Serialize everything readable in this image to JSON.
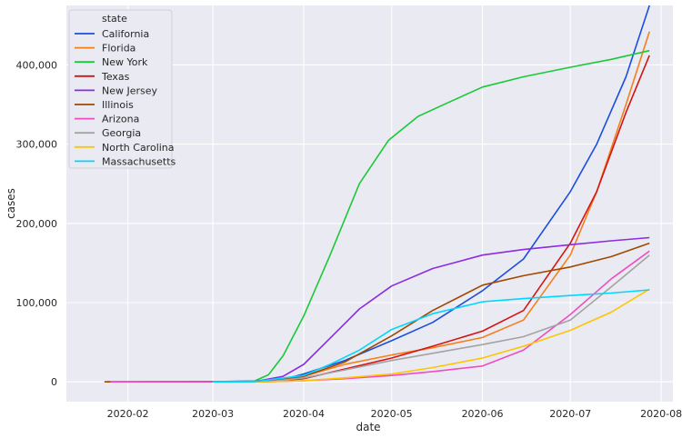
{
  "chart_data": {
    "type": "line",
    "xlabel": "date",
    "ylabel": "cases",
    "x_range": [
      "2020-01-11",
      "2020-08-05"
    ],
    "ylim": [
      -25000,
      475000
    ],
    "x_ticks": [
      {
        "date": "2020-02-01",
        "label": "2020-02"
      },
      {
        "date": "2020-03-01",
        "label": "2020-03"
      },
      {
        "date": "2020-04-01",
        "label": "2020-04"
      },
      {
        "date": "2020-05-01",
        "label": "2020-05"
      },
      {
        "date": "2020-06-01",
        "label": "2020-06"
      },
      {
        "date": "2020-07-01",
        "label": "2020-07"
      },
      {
        "date": "2020-08-01",
        "label": "2020-08"
      }
    ],
    "y_ticks": [
      {
        "value": 0,
        "label": "0"
      },
      {
        "value": 100000,
        "label": "100,000"
      },
      {
        "value": 200000,
        "label": "200,000"
      },
      {
        "value": 300000,
        "label": "300,000"
      },
      {
        "value": 400000,
        "label": "400,000"
      }
    ],
    "grid": true,
    "background": "#eaeaf2",
    "legend": {
      "title": "state",
      "placement": "top-left"
    },
    "series": [
      {
        "name": "California",
        "color": "#1a4ede",
        "points": [
          [
            "2020-01-25",
            0
          ],
          [
            "2020-03-01",
            200
          ],
          [
            "2020-03-15",
            1000
          ],
          [
            "2020-03-25",
            3000
          ],
          [
            "2020-04-01",
            10000
          ],
          [
            "2020-04-15",
            27000
          ],
          [
            "2020-05-01",
            52000
          ],
          [
            "2020-05-15",
            75000
          ],
          [
            "2020-06-01",
            115000
          ],
          [
            "2020-06-15",
            155000
          ],
          [
            "2020-07-01",
            240000
          ],
          [
            "2020-07-10",
            300000
          ],
          [
            "2020-07-20",
            385000
          ],
          [
            "2020-07-28",
            475000
          ]
        ]
      },
      {
        "name": "Florida",
        "color": "#f47f1b",
        "points": [
          [
            "2020-03-01",
            0
          ],
          [
            "2020-03-20",
            300
          ],
          [
            "2020-03-25",
            2000
          ],
          [
            "2020-04-01",
            7000
          ],
          [
            "2020-04-15",
            22000
          ],
          [
            "2020-05-01",
            34000
          ],
          [
            "2020-05-15",
            43000
          ],
          [
            "2020-06-01",
            56000
          ],
          [
            "2020-06-15",
            78000
          ],
          [
            "2020-07-01",
            160000
          ],
          [
            "2020-07-10",
            240000
          ],
          [
            "2020-07-20",
            350000
          ],
          [
            "2020-07-28",
            442000
          ]
        ]
      },
      {
        "name": "New York",
        "color": "#1ac938",
        "points": [
          [
            "2020-03-01",
            0
          ],
          [
            "2020-03-15",
            700
          ],
          [
            "2020-03-20",
            9000
          ],
          [
            "2020-03-25",
            33000
          ],
          [
            "2020-04-01",
            83000
          ],
          [
            "2020-04-10",
            160000
          ],
          [
            "2020-04-20",
            250000
          ],
          [
            "2020-04-30",
            305000
          ],
          [
            "2020-05-10",
            335000
          ],
          [
            "2020-05-20",
            352000
          ],
          [
            "2020-06-01",
            372000
          ],
          [
            "2020-06-15",
            385000
          ],
          [
            "2020-07-01",
            397000
          ],
          [
            "2020-07-15",
            407000
          ],
          [
            "2020-07-28",
            418000
          ]
        ]
      },
      {
        "name": "Texas",
        "color": "#d41515",
        "points": [
          [
            "2020-03-01",
            0
          ],
          [
            "2020-03-20",
            200
          ],
          [
            "2020-04-01",
            4000
          ],
          [
            "2020-04-15",
            16000
          ],
          [
            "2020-05-01",
            30000
          ],
          [
            "2020-05-15",
            45000
          ],
          [
            "2020-06-01",
            64000
          ],
          [
            "2020-06-15",
            90000
          ],
          [
            "2020-07-01",
            175000
          ],
          [
            "2020-07-10",
            240000
          ],
          [
            "2020-07-20",
            340000
          ],
          [
            "2020-07-28",
            412000
          ]
        ]
      },
      {
        "name": "New Jersey",
        "color": "#8b2be2",
        "points": [
          [
            "2020-03-01",
            0
          ],
          [
            "2020-03-15",
            200
          ],
          [
            "2020-03-25",
            7000
          ],
          [
            "2020-04-01",
            22000
          ],
          [
            "2020-04-10",
            55000
          ],
          [
            "2020-04-20",
            92000
          ],
          [
            "2020-05-01",
            121000
          ],
          [
            "2020-05-15",
            143000
          ],
          [
            "2020-06-01",
            160000
          ],
          [
            "2020-06-15",
            167000
          ],
          [
            "2020-07-01",
            173000
          ],
          [
            "2020-07-15",
            178000
          ],
          [
            "2020-07-28",
            182000
          ]
        ]
      },
      {
        "name": "Illinois",
        "color": "#9f4800",
        "points": [
          [
            "2020-01-24",
            0
          ],
          [
            "2020-03-20",
            300
          ],
          [
            "2020-04-01",
            7000
          ],
          [
            "2020-04-15",
            25000
          ],
          [
            "2020-05-01",
            58000
          ],
          [
            "2020-05-15",
            90000
          ],
          [
            "2020-06-01",
            122000
          ],
          [
            "2020-06-15",
            134000
          ],
          [
            "2020-07-01",
            145000
          ],
          [
            "2020-07-15",
            158000
          ],
          [
            "2020-07-28",
            175000
          ]
        ]
      },
      {
        "name": "Arizona",
        "color": "#f14cc1",
        "points": [
          [
            "2020-01-26",
            0
          ],
          [
            "2020-03-20",
            100
          ],
          [
            "2020-04-01",
            1500
          ],
          [
            "2020-04-15",
            4000
          ],
          [
            "2020-05-01",
            8000
          ],
          [
            "2020-05-15",
            13000
          ],
          [
            "2020-06-01",
            20000
          ],
          [
            "2020-06-15",
            40000
          ],
          [
            "2020-07-01",
            85000
          ],
          [
            "2020-07-15",
            130000
          ],
          [
            "2020-07-28",
            165000
          ]
        ]
      },
      {
        "name": "Georgia",
        "color": "#a3a3a3",
        "points": [
          [
            "2020-03-01",
            0
          ],
          [
            "2020-03-20",
            400
          ],
          [
            "2020-04-01",
            5000
          ],
          [
            "2020-04-15",
            15000
          ],
          [
            "2020-05-01",
            27000
          ],
          [
            "2020-05-15",
            36000
          ],
          [
            "2020-06-01",
            47000
          ],
          [
            "2020-06-15",
            57000
          ],
          [
            "2020-07-01",
            78000
          ],
          [
            "2020-07-15",
            120000
          ],
          [
            "2020-07-28",
            160000
          ]
        ]
      },
      {
        "name": "North Carolina",
        "color": "#ffc400",
        "points": [
          [
            "2020-03-01",
            0
          ],
          [
            "2020-03-20",
            200
          ],
          [
            "2020-04-01",
            1500
          ],
          [
            "2020-04-15",
            5000
          ],
          [
            "2020-05-01",
            10000
          ],
          [
            "2020-05-15",
            18000
          ],
          [
            "2020-06-01",
            30000
          ],
          [
            "2020-06-15",
            45000
          ],
          [
            "2020-07-01",
            65000
          ],
          [
            "2020-07-15",
            88000
          ],
          [
            "2020-07-28",
            117000
          ]
        ]
      },
      {
        "name": "Massachusetts",
        "color": "#00d7ff",
        "points": [
          [
            "2020-03-01",
            0
          ],
          [
            "2020-03-15",
            100
          ],
          [
            "2020-04-01",
            8000
          ],
          [
            "2020-04-10",
            22000
          ],
          [
            "2020-04-20",
            40000
          ],
          [
            "2020-05-01",
            66000
          ],
          [
            "2020-05-15",
            86000
          ],
          [
            "2020-06-01",
            101000
          ],
          [
            "2020-06-15",
            105000
          ],
          [
            "2020-07-01",
            109000
          ],
          [
            "2020-07-15",
            112000
          ],
          [
            "2020-07-28",
            116000
          ]
        ]
      }
    ]
  }
}
